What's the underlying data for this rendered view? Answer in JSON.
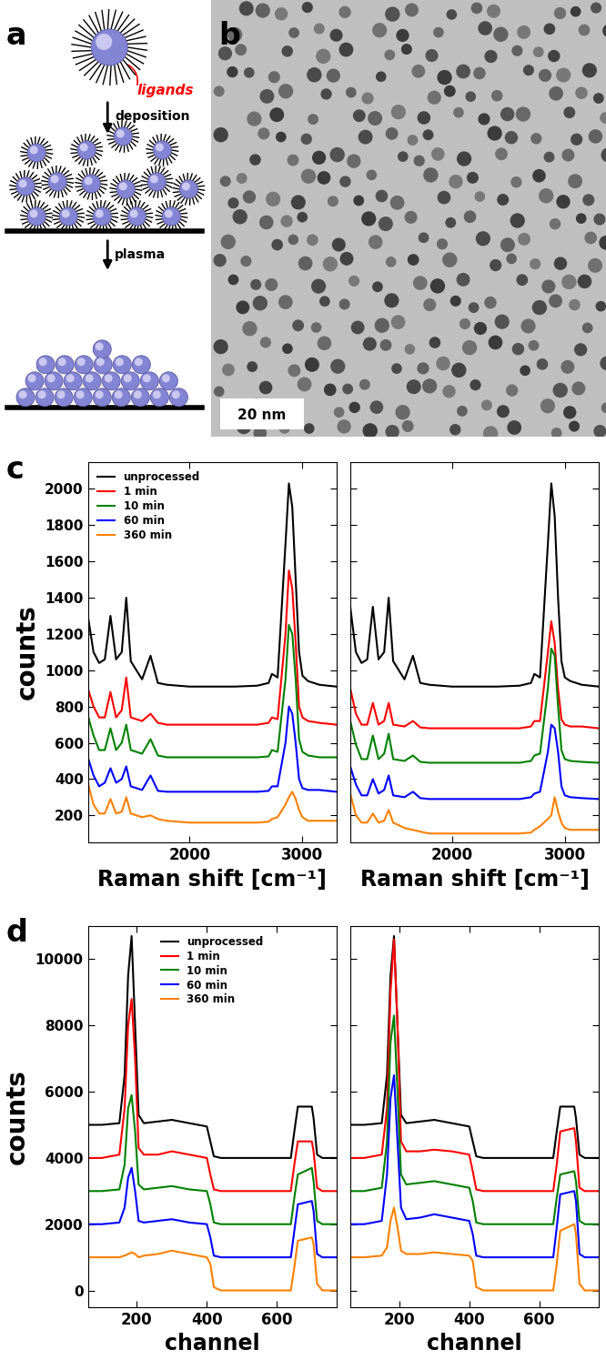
{
  "panel_labels": [
    "a",
    "b",
    "c",
    "d"
  ],
  "schematic": {
    "ligand_label": "ligands",
    "step1": "deposition",
    "step2": "plasma"
  },
  "micrograph": {
    "scale_bar": "20 nm"
  },
  "chart_data": [
    {
      "type": "line",
      "x_label": "Raman shift [cm⁻¹]",
      "y_label": "counts",
      "xlim": [
        1100,
        3300
      ],
      "ylim": [
        50,
        2150
      ],
      "xticks": [
        2000,
        3000
      ],
      "yticks": [
        200,
        400,
        600,
        800,
        1000,
        1200,
        1400,
        1600,
        1800,
        2000
      ],
      "legend": "upper left",
      "grid": false,
      "x": [
        1100,
        1150,
        1200,
        1250,
        1300,
        1350,
        1400,
        1440,
        1480,
        1580,
        1655,
        1720,
        1800,
        2000,
        2200,
        2400,
        2600,
        2700,
        2730,
        2780,
        2850,
        2880,
        2910,
        2940,
        2970,
        3000,
        3050,
        3150,
        3300
      ],
      "series": [
        {
          "name": "unprocessed",
          "color": "#000000",
          "values": [
            1300,
            1100,
            1040,
            1060,
            1300,
            1060,
            1100,
            1400,
            1050,
            950,
            1080,
            930,
            920,
            910,
            910,
            910,
            915,
            930,
            980,
            960,
            1700,
            2030,
            1900,
            1500,
            1100,
            970,
            940,
            920,
            910
          ]
        },
        {
          "name": "1 min",
          "color": "#ff0000",
          "values": [
            900,
            800,
            740,
            740,
            880,
            740,
            780,
            960,
            740,
            720,
            760,
            710,
            700,
            700,
            700,
            700,
            700,
            710,
            740,
            730,
            1200,
            1550,
            1450,
            1150,
            800,
            740,
            720,
            710,
            700
          ]
        },
        {
          "name": "10 min",
          "color": "#008000",
          "values": [
            750,
            640,
            560,
            560,
            680,
            560,
            600,
            700,
            560,
            540,
            620,
            530,
            520,
            520,
            520,
            520,
            520,
            525,
            560,
            550,
            950,
            1250,
            1200,
            950,
            620,
            550,
            530,
            520,
            520
          ]
        },
        {
          "name": "60 min",
          "color": "#0000ff",
          "values": [
            520,
            420,
            360,
            380,
            460,
            380,
            400,
            470,
            360,
            340,
            420,
            335,
            330,
            330,
            330,
            330,
            330,
            335,
            360,
            360,
            600,
            800,
            760,
            600,
            400,
            350,
            340,
            340,
            330
          ]
        },
        {
          "name": "360 min",
          "color": "#ff8000",
          "values": [
            380,
            260,
            210,
            210,
            290,
            210,
            220,
            300,
            210,
            190,
            200,
            180,
            170,
            160,
            160,
            160,
            160,
            165,
            180,
            190,
            260,
            300,
            330,
            290,
            230,
            190,
            170,
            170,
            170
          ]
        }
      ]
    },
    {
      "type": "line",
      "x_label": "Raman shift [cm⁻¹]",
      "tick_labels": "x",
      "xlim": [
        1100,
        3300
      ],
      "ylim": [
        50,
        2150
      ],
      "xticks": [
        2000,
        3000
      ],
      "yticks": [
        200,
        400,
        600,
        800,
        1000,
        1200,
        1400,
        1600,
        1800,
        2000
      ],
      "grid": false,
      "x": [
        1100,
        1150,
        1200,
        1250,
        1300,
        1350,
        1400,
        1440,
        1480,
        1580,
        1655,
        1720,
        1800,
        2000,
        2200,
        2400,
        2600,
        2700,
        2730,
        2780,
        2850,
        2880,
        2910,
        2940,
        2970,
        3000,
        3050,
        3150,
        3300
      ],
      "series": [
        {
          "color": "#000000",
          "values": [
            1350,
            1100,
            1040,
            1060,
            1350,
            1060,
            1100,
            1400,
            1050,
            950,
            1080,
            930,
            920,
            910,
            910,
            910,
            915,
            930,
            980,
            960,
            1700,
            2030,
            1850,
            1400,
            1050,
            960,
            940,
            920,
            910
          ]
        },
        {
          "color": "#ff0000",
          "values": [
            900,
            760,
            700,
            700,
            820,
            700,
            720,
            820,
            700,
            690,
            720,
            685,
            680,
            680,
            680,
            680,
            680,
            690,
            720,
            720,
            1100,
            1270,
            1150,
            900,
            730,
            700,
            690,
            690,
            680
          ]
        },
        {
          "color": "#008000",
          "values": [
            720,
            590,
            510,
            510,
            640,
            510,
            540,
            650,
            510,
            500,
            530,
            495,
            490,
            490,
            490,
            490,
            490,
            500,
            530,
            540,
            900,
            1120,
            1080,
            800,
            560,
            510,
            500,
            495,
            490
          ]
        },
        {
          "color": "#0000ff",
          "values": [
            470,
            370,
            310,
            310,
            400,
            320,
            340,
            420,
            310,
            300,
            330,
            295,
            290,
            290,
            290,
            290,
            290,
            300,
            320,
            330,
            550,
            700,
            680,
            550,
            360,
            310,
            300,
            295,
            290
          ]
        },
        {
          "color": "#ff8000",
          "values": [
            320,
            200,
            160,
            160,
            210,
            160,
            170,
            230,
            160,
            130,
            120,
            110,
            100,
            100,
            100,
            100,
            100,
            105,
            120,
            140,
            180,
            200,
            300,
            220,
            160,
            130,
            120,
            120,
            120
          ]
        }
      ]
    },
    {
      "type": "line",
      "x_label": "channel",
      "y_label": "counts",
      "xlim": [
        60,
        770
      ],
      "ylim": [
        -500,
        11000
      ],
      "xticks": [
        200,
        400,
        600
      ],
      "yticks": [
        0,
        2000,
        4000,
        6000,
        8000,
        10000
      ],
      "legend": "upper center",
      "grid": false,
      "x": [
        60,
        100,
        150,
        165,
        175,
        185,
        195,
        205,
        220,
        260,
        300,
        350,
        400,
        410,
        420,
        440,
        500,
        600,
        640,
        650,
        660,
        700,
        705,
        715,
        730,
        770
      ],
      "series": [
        {
          "name": "unprocessed",
          "color": "#000000",
          "values": [
            5000,
            5000,
            5050,
            6500,
            9500,
            10700,
            8000,
            5300,
            5050,
            5100,
            5150,
            5050,
            4950,
            4500,
            4050,
            4000,
            4000,
            4000,
            4000,
            4800,
            5550,
            5550,
            5200,
            4100,
            4000,
            4000
          ]
        },
        {
          "name": "1 min",
          "color": "#ff0000",
          "values": [
            4000,
            4000,
            4100,
            5500,
            8000,
            8800,
            7000,
            4300,
            4100,
            4100,
            4200,
            4100,
            4000,
            3500,
            3050,
            3000,
            3000,
            3000,
            3000,
            3800,
            4500,
            4500,
            4200,
            3100,
            3000,
            3000
          ]
        },
        {
          "name": "10 min",
          "color": "#008000",
          "values": [
            3000,
            3000,
            3050,
            3800,
            5500,
            5900,
            4800,
            3200,
            3050,
            3100,
            3150,
            3050,
            3000,
            2600,
            2050,
            2000,
            2000,
            2000,
            2000,
            2800,
            3500,
            3700,
            3300,
            2100,
            2000,
            2000
          ]
        },
        {
          "name": "60 min",
          "color": "#0000ff",
          "values": [
            2000,
            2000,
            2050,
            2500,
            3400,
            3700,
            3000,
            2100,
            2050,
            2100,
            2150,
            2050,
            2000,
            1600,
            1050,
            1000,
            1000,
            1000,
            1000,
            1800,
            2600,
            2700,
            2400,
            1100,
            1000,
            1000
          ]
        },
        {
          "name": "360 min",
          "color": "#ff8000",
          "values": [
            1000,
            1000,
            1000,
            1050,
            1100,
            1150,
            1100,
            1000,
            1050,
            1100,
            1200,
            1100,
            1000,
            800,
            100,
            0,
            0,
            0,
            0,
            700,
            1500,
            1600,
            1400,
            200,
            0,
            0
          ]
        }
      ]
    },
    {
      "type": "line",
      "x_label": "channel",
      "tick_labels": "x",
      "xlim": [
        60,
        770
      ],
      "ylim": [
        -500,
        11000
      ],
      "xticks": [
        200,
        400,
        600
      ],
      "yticks": [
        0,
        2000,
        4000,
        6000,
        8000,
        10000
      ],
      "grid": false,
      "x": [
        60,
        100,
        150,
        165,
        175,
        185,
        195,
        205,
        220,
        260,
        300,
        350,
        400,
        410,
        420,
        440,
        500,
        600,
        640,
        650,
        660,
        700,
        705,
        715,
        730,
        770
      ],
      "series": [
        {
          "color": "#000000",
          "values": [
            5000,
            5000,
            5050,
            6500,
            9500,
            10700,
            8000,
            5300,
            5050,
            5100,
            5150,
            5050,
            4950,
            4500,
            4050,
            4000,
            4000,
            4000,
            4000,
            4800,
            5550,
            5550,
            5200,
            4100,
            4000,
            4000
          ]
        },
        {
          "color": "#ff0000",
          "values": [
            4000,
            4000,
            4100,
            5500,
            9000,
            10600,
            8000,
            4500,
            4200,
            4200,
            4250,
            4200,
            4100,
            3600,
            3050,
            3000,
            3000,
            3000,
            3000,
            3800,
            4800,
            4900,
            4500,
            3100,
            3000,
            3000
          ]
        },
        {
          "color": "#008000",
          "values": [
            3000,
            3000,
            3100,
            4500,
            7500,
            8300,
            6000,
            3500,
            3200,
            3250,
            3300,
            3200,
            3100,
            2700,
            2050,
            2000,
            2000,
            2000,
            2000,
            2800,
            3500,
            3600,
            3300,
            2100,
            2000,
            2000
          ]
        },
        {
          "color": "#0000ff",
          "values": [
            2000,
            2000,
            2100,
            3500,
            5800,
            6500,
            4500,
            2500,
            2150,
            2200,
            2300,
            2200,
            2100,
            1700,
            1050,
            1000,
            1000,
            1000,
            1000,
            1900,
            2900,
            3000,
            2700,
            1100,
            1000,
            1000
          ]
        },
        {
          "color": "#ff8000",
          "values": [
            1000,
            1000,
            1050,
            1300,
            2100,
            2500,
            1900,
            1200,
            1100,
            1100,
            1150,
            1100,
            1050,
            900,
            100,
            0,
            0,
            0,
            0,
            800,
            1800,
            2000,
            1700,
            200,
            0,
            0
          ]
        }
      ]
    }
  ]
}
